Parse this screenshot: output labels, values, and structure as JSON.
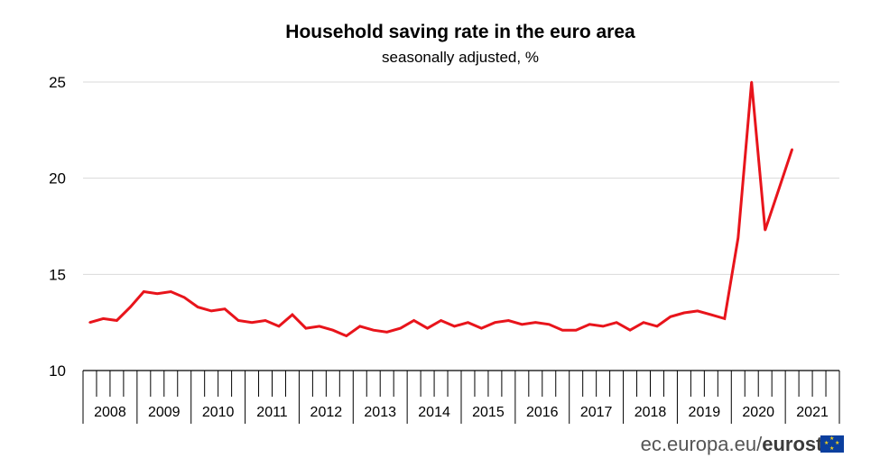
{
  "chart_data": {
    "type": "line",
    "title": "Household saving rate in the euro area",
    "subtitle": "seasonally adjusted, %",
    "xlabel": "",
    "ylabel": "",
    "ylim": [
      10,
      25
    ],
    "yticks": [
      "10",
      "15",
      "20",
      "25"
    ],
    "years": [
      "2008",
      "2009",
      "2010",
      "2011",
      "2012",
      "2013",
      "2014",
      "2015",
      "2016",
      "2017",
      "2018",
      "2019",
      "2020",
      "2021"
    ],
    "grid": true,
    "series": [
      {
        "color": "#e8141b",
        "values": [
          12.5,
          12.7,
          12.6,
          13.3,
          14.1,
          14.0,
          14.1,
          13.8,
          13.3,
          13.1,
          13.2,
          12.6,
          12.5,
          12.6,
          12.3,
          12.9,
          12.2,
          12.3,
          12.1,
          11.8,
          12.3,
          12.1,
          12.0,
          12.2,
          12.6,
          12.2,
          12.6,
          12.3,
          12.5,
          12.2,
          12.5,
          12.6,
          12.4,
          12.5,
          12.4,
          12.1,
          12.1,
          12.4,
          12.3,
          12.5,
          12.1,
          12.5,
          12.3,
          12.8,
          13.0,
          13.1,
          12.9,
          12.7,
          16.9,
          25.0,
          17.3,
          19.4,
          21.5
        ]
      }
    ]
  },
  "footer": {
    "site": "ec.europa.eu/",
    "brand": "eurostat"
  }
}
